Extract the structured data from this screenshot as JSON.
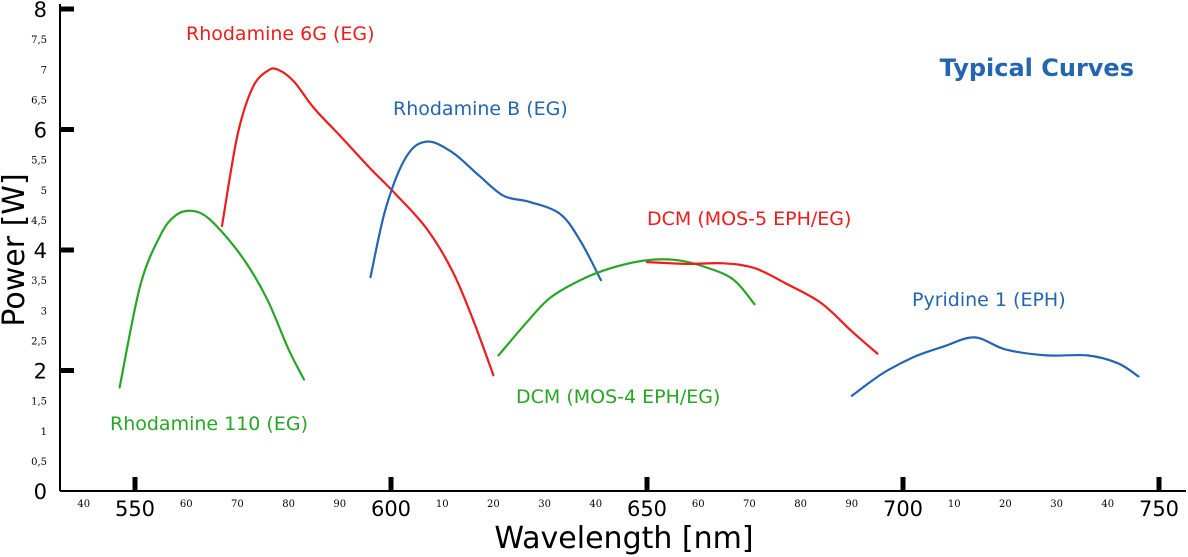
{
  "chart_data": {
    "type": "line",
    "title": "Typical Curves",
    "xlabel": "Wavelength [nm]",
    "ylabel": "Power [W]",
    "xlim": [
      535,
      752
    ],
    "ylim": [
      0,
      8
    ],
    "grid": false,
    "colors": {
      "red": "#ee1c1c",
      "blue": "#2265b1",
      "green": "#27a626",
      "title": "#2265b1"
    },
    "x_ticks_major": [
      {
        "value": 550,
        "label": "550"
      },
      {
        "value": 600,
        "label": "600"
      },
      {
        "value": 650,
        "label": "650"
      },
      {
        "value": 700,
        "label": "700"
      },
      {
        "value": 750,
        "label": "750"
      }
    ],
    "x_ticks_minor": [
      {
        "value": 540,
        "label": "40"
      },
      {
        "value": 560,
        "label": "60"
      },
      {
        "value": 570,
        "label": "70"
      },
      {
        "value": 580,
        "label": "80"
      },
      {
        "value": 590,
        "label": "90"
      },
      {
        "value": 610,
        "label": "10"
      },
      {
        "value": 620,
        "label": "20"
      },
      {
        "value": 630,
        "label": "30"
      },
      {
        "value": 640,
        "label": "40"
      },
      {
        "value": 660,
        "label": "60"
      },
      {
        "value": 670,
        "label": "70"
      },
      {
        "value": 680,
        "label": "80"
      },
      {
        "value": 690,
        "label": "90"
      },
      {
        "value": 710,
        "label": "10"
      },
      {
        "value": 720,
        "label": "20"
      },
      {
        "value": 730,
        "label": "30"
      },
      {
        "value": 740,
        "label": "40"
      }
    ],
    "y_ticks_major": [
      {
        "value": 0,
        "label": "0"
      },
      {
        "value": 2,
        "label": "2"
      },
      {
        "value": 4,
        "label": "4"
      },
      {
        "value": 6,
        "label": "6"
      },
      {
        "value": 8,
        "label": "8"
      }
    ],
    "y_ticks_minor": [
      {
        "value": 0.5,
        "label": "0,5"
      },
      {
        "value": 1,
        "label": "1"
      },
      {
        "value": 1.5,
        "label": "1,5"
      },
      {
        "value": 2.5,
        "label": "2,5"
      },
      {
        "value": 3,
        "label": "3"
      },
      {
        "value": 3.5,
        "label": "3,5"
      },
      {
        "value": 4.5,
        "label": "4,5"
      },
      {
        "value": 5,
        "label": "5"
      },
      {
        "value": 5.5,
        "label": "5,5"
      },
      {
        "value": 6.5,
        "label": "6,5"
      },
      {
        "value": 7,
        "label": "7"
      },
      {
        "value": 7.5,
        "label": "7,5"
      }
    ],
    "series": [
      {
        "name": "Rhodamine 110 (EG)",
        "color": "green",
        "x": [
          547,
          551,
          555,
          558,
          561,
          564,
          568,
          572,
          576,
          580,
          583
        ],
        "y": [
          1.72,
          3.4,
          4.25,
          4.58,
          4.65,
          4.55,
          4.2,
          3.75,
          3.15,
          2.35,
          1.85
        ]
      },
      {
        "name": "Rhodamine 6G (EG)",
        "color": "red",
        "x": [
          567,
          570,
          573,
          576,
          578,
          581,
          585,
          590,
          596,
          601,
          607,
          612,
          616,
          620
        ],
        "y": [
          4.4,
          5.9,
          6.7,
          6.98,
          6.99,
          6.8,
          6.35,
          5.9,
          5.35,
          4.92,
          4.35,
          3.65,
          2.85,
          1.92
        ]
      },
      {
        "name": "Rhodamine B (EG)",
        "color": "blue",
        "x": [
          596,
          599,
          603,
          607,
          612,
          617,
          622,
          627,
          633,
          637,
          641
        ],
        "y": [
          3.55,
          4.7,
          5.55,
          5.8,
          5.62,
          5.25,
          4.9,
          4.8,
          4.6,
          4.15,
          3.5
        ]
      },
      {
        "name": "DCM (MOS-4 EPH/EG)",
        "color": "green",
        "x": [
          621,
          626,
          631,
          637,
          643,
          650,
          656,
          662,
          667,
          671
        ],
        "y": [
          2.25,
          2.75,
          3.2,
          3.5,
          3.7,
          3.83,
          3.83,
          3.7,
          3.5,
          3.1
        ]
      },
      {
        "name": "DCM (MOS-5 EPH/EG)",
        "color": "red",
        "x": [
          650,
          658,
          665,
          671,
          677,
          684,
          690,
          695
        ],
        "y": [
          3.8,
          3.77,
          3.78,
          3.7,
          3.45,
          3.12,
          2.65,
          2.28
        ]
      },
      {
        "name": "Pyridine 1 (EPH)",
        "color": "blue",
        "x": [
          690,
          696,
          702,
          708,
          714,
          720,
          728,
          736,
          742,
          746
        ],
        "y": [
          1.58,
          1.95,
          2.22,
          2.4,
          2.55,
          2.35,
          2.25,
          2.25,
          2.12,
          1.9
        ]
      }
    ],
    "series_labels": [
      {
        "text": "Rhodamine 6G (EG)",
        "color": "red"
      },
      {
        "text": "Rhodamine B (EG)",
        "color": "blue"
      },
      {
        "text": "DCM (MOS-5 EPH/EG)",
        "color": "red"
      },
      {
        "text": "Pyridine 1 (EPH)",
        "color": "blue"
      },
      {
        "text": "DCM (MOS-4 EPH/EG)",
        "color": "green"
      },
      {
        "text": "Rhodamine 110 (EG)",
        "color": "green"
      }
    ]
  }
}
